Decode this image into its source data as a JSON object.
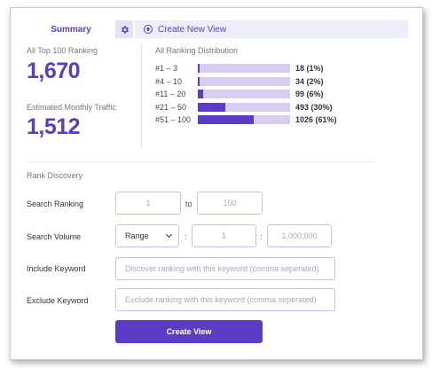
{
  "tabs": {
    "summary_label": "Summary",
    "settings_icon": "gear-icon",
    "create_icon": "plus-circle-icon",
    "create_label": "Create New View"
  },
  "metrics": {
    "top100_label": "All Top 100 Ranking",
    "top100_value": "1,670",
    "traffic_label": "Estimated Monthly Traffic",
    "traffic_value": "1,512"
  },
  "distribution": {
    "title": "All Ranking Distribution",
    "rows": [
      {
        "label": "#1 – 3",
        "value": "18 (1%)",
        "fraction": 0.01
      },
      {
        "label": "#4 – 10",
        "value": "34 (2%)",
        "fraction": 0.02
      },
      {
        "label": "#11 – 20",
        "value": "99 (6%)",
        "fraction": 0.06
      },
      {
        "label": "#21 – 50",
        "value": "493 (30%)",
        "fraction": 0.3
      },
      {
        "label": "#51 – 100",
        "value": "1026 (61%)",
        "fraction": 0.61
      }
    ]
  },
  "rank_discovery": {
    "title": "Rank Discovery",
    "search_ranking": {
      "label": "Search Ranking",
      "from_placeholder": "1",
      "separator": "to",
      "to_placeholder": "100"
    },
    "search_volume": {
      "label": "Search Volume",
      "select_value": "Range",
      "separator": ":",
      "min_placeholder": "1",
      "max_placeholder": "1,000,000"
    },
    "include_keyword": {
      "label": "Include Keyword",
      "placeholder": "Discover ranking with this keyword (comma seperated)"
    },
    "exclude_keyword": {
      "label": "Exclude Keyword",
      "placeholder": "Exclude ranking with this keyword (comma seperated)"
    },
    "submit_label": "Create View"
  },
  "colors": {
    "accent": "#5b3cc4",
    "bar_track": "#d6cdef",
    "input_border": "#c7bff0"
  }
}
